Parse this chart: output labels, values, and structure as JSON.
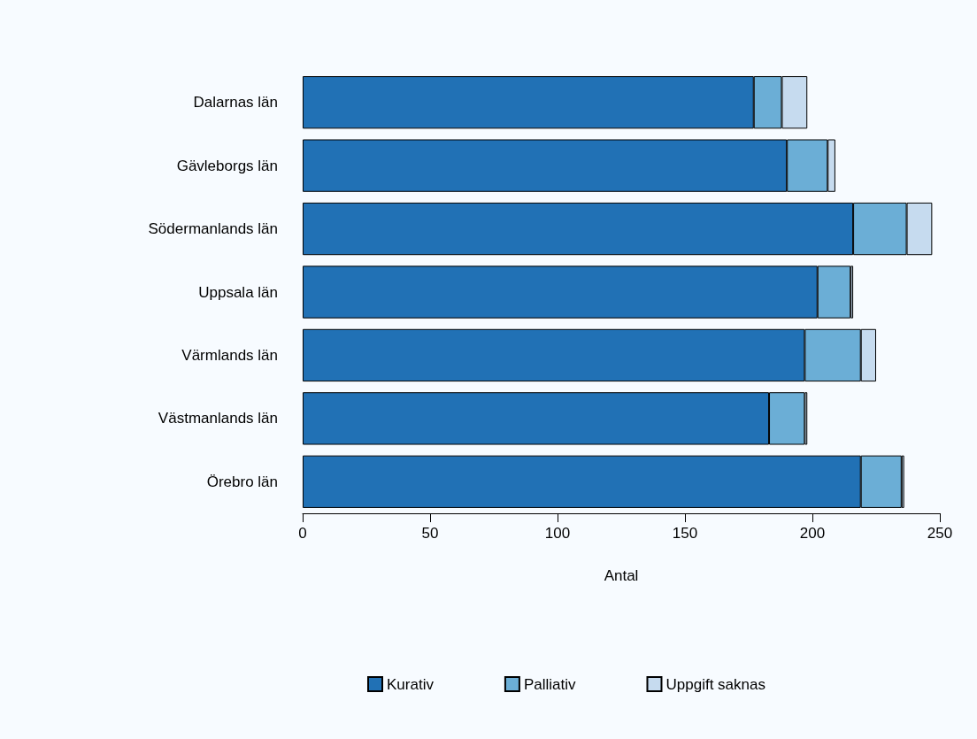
{
  "chart_data": {
    "type": "bar",
    "orientation": "horizontal",
    "stacked": true,
    "xlabel": "Antal",
    "categories": [
      "Dalarnas län",
      "Gävleborgs län",
      "Södermanlands län",
      "Uppsala län",
      "Värmlands län",
      "Västmanlands län",
      "Örebro län"
    ],
    "series": [
      {
        "name": "Kurativ",
        "color": "#2171b5",
        "values": [
          177,
          190,
          216,
          202,
          197,
          183,
          219
        ]
      },
      {
        "name": "Palliativ",
        "color": "#6baed6",
        "values": [
          11,
          16,
          21,
          13,
          22,
          14,
          16
        ]
      },
      {
        "name": "Uppgift saknas",
        "color": "#c6dbef",
        "values": [
          10,
          3,
          10,
          1,
          6,
          1,
          1
        ]
      }
    ],
    "xlim": [
      0,
      250
    ],
    "xticks": [
      0,
      50,
      100,
      150,
      200,
      250
    ],
    "grid": false,
    "legend": "bottom"
  }
}
